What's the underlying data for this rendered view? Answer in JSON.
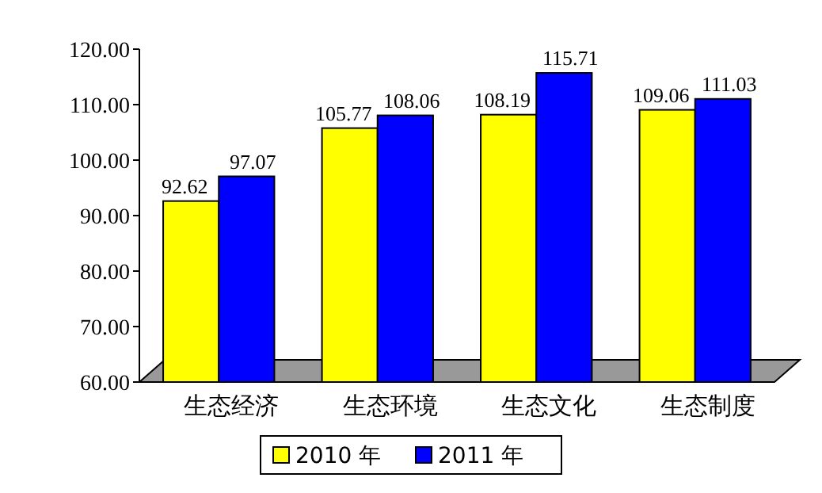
{
  "chart_data": {
    "type": "bar",
    "categories": [
      "生态经济",
      "生态环境",
      "生态文化",
      "生态制度"
    ],
    "series": [
      {
        "name": "2010 年",
        "color": "#ffff00",
        "values": [
          92.62,
          105.77,
          108.19,
          109.06
        ]
      },
      {
        "name": "2011 年",
        "color": "#0000ff",
        "values": [
          97.07,
          108.06,
          115.71,
          111.03
        ]
      }
    ],
    "ylim": [
      60,
      120
    ],
    "yticks": [
      {
        "value": 60,
        "label": "60.00"
      },
      {
        "value": 70,
        "label": "70.00"
      },
      {
        "value": 80,
        "label": "80.00"
      },
      {
        "value": 90,
        "label": "90.00"
      },
      {
        "value": 100,
        "label": "100.00"
      },
      {
        "value": 110,
        "label": "110.00"
      },
      {
        "value": 120,
        "label": "120.00"
      }
    ],
    "data_labels": true,
    "legend": "bottom",
    "grid": false
  }
}
